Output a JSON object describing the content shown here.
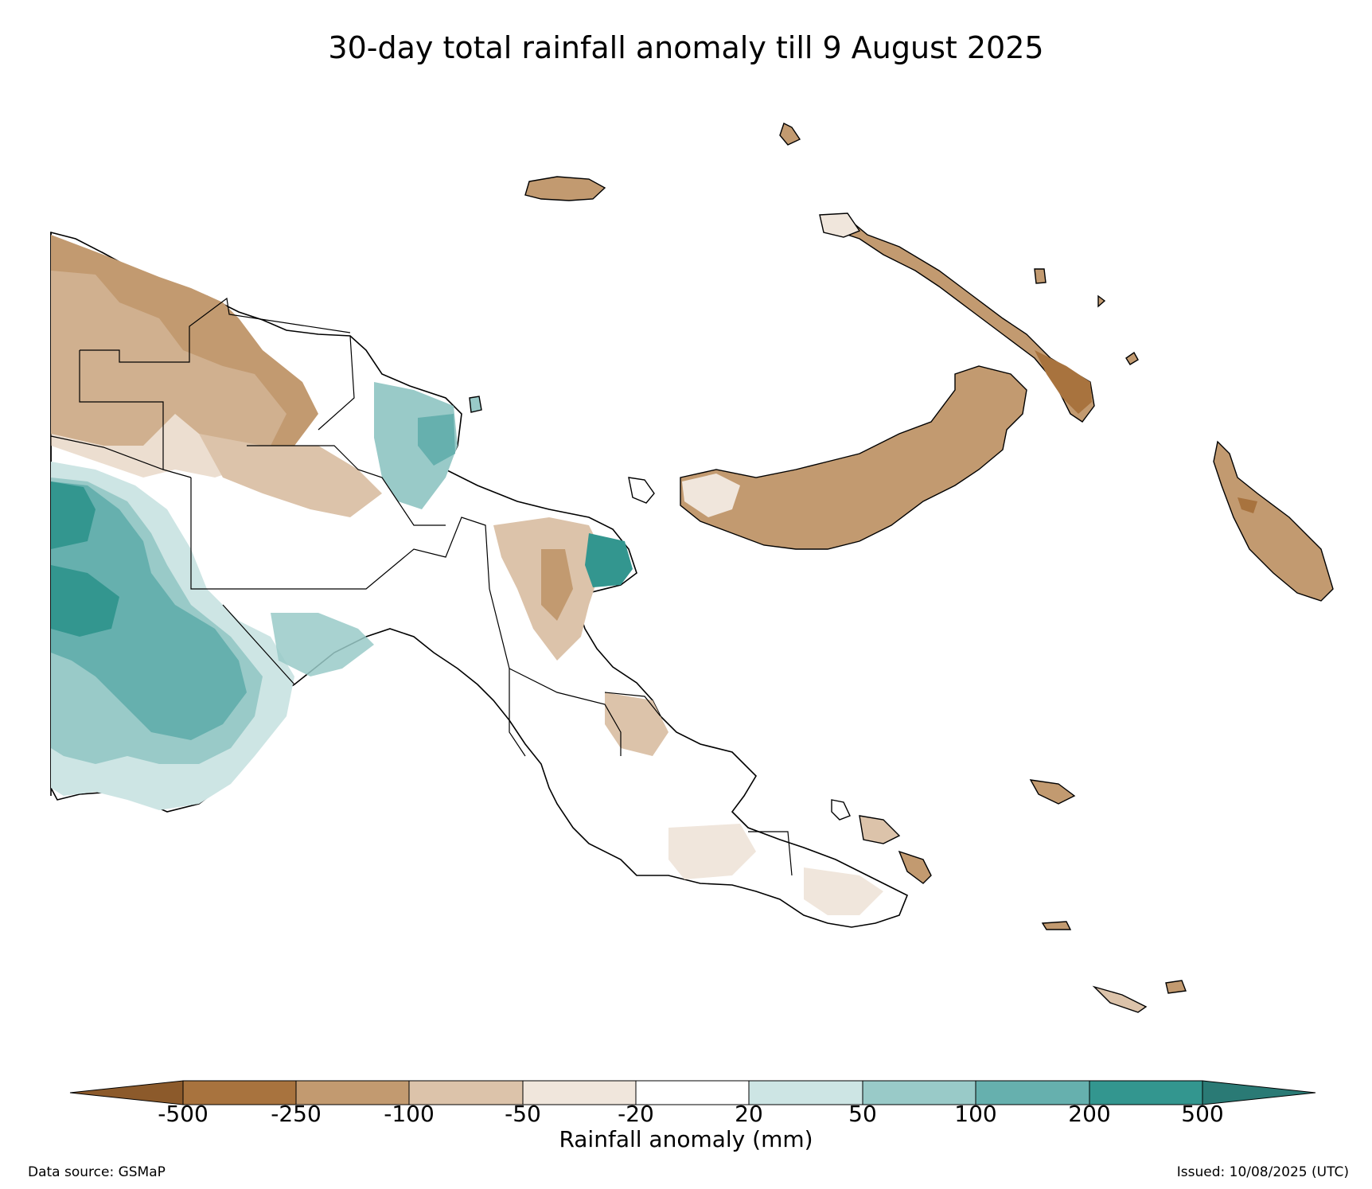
{
  "title": "30-day total rainfall anomaly till 9 August 2025",
  "colorbar": {
    "label": "Rainfall anomaly (mm)",
    "ticks": [
      "-500",
      "-250",
      "-100",
      "-50",
      "-20",
      "20",
      "50",
      "100",
      "200",
      "500"
    ],
    "bins": [
      {
        "range": "< -500",
        "color": "#8c5a2b"
      },
      {
        "range": "-500 to -250",
        "color": "#a8733e"
      },
      {
        "range": "-250 to -100",
        "color": "#c29a70"
      },
      {
        "range": "-100 to -50",
        "color": "#dcc3aa"
      },
      {
        "range": "-50 to -20",
        "color": "#f0e6dc"
      },
      {
        "range": "-20 to 20",
        "color": "#ffffff"
      },
      {
        "range": "20 to 50",
        "color": "#cde5e4"
      },
      {
        "range": "50 to 100",
        "color": "#99cac8"
      },
      {
        "range": "100 to 200",
        "color": "#66b0ae"
      },
      {
        "range": "200 to 500",
        "color": "#33968f"
      },
      {
        "range": "> 500",
        "color": "#2a7a75"
      }
    ]
  },
  "footer": {
    "source": "Data source: GSMaP",
    "issued": "Issued: 10/08/2025 (UTC)"
  },
  "colors": {
    "coast": "#000000",
    "boundary": "#000000"
  }
}
